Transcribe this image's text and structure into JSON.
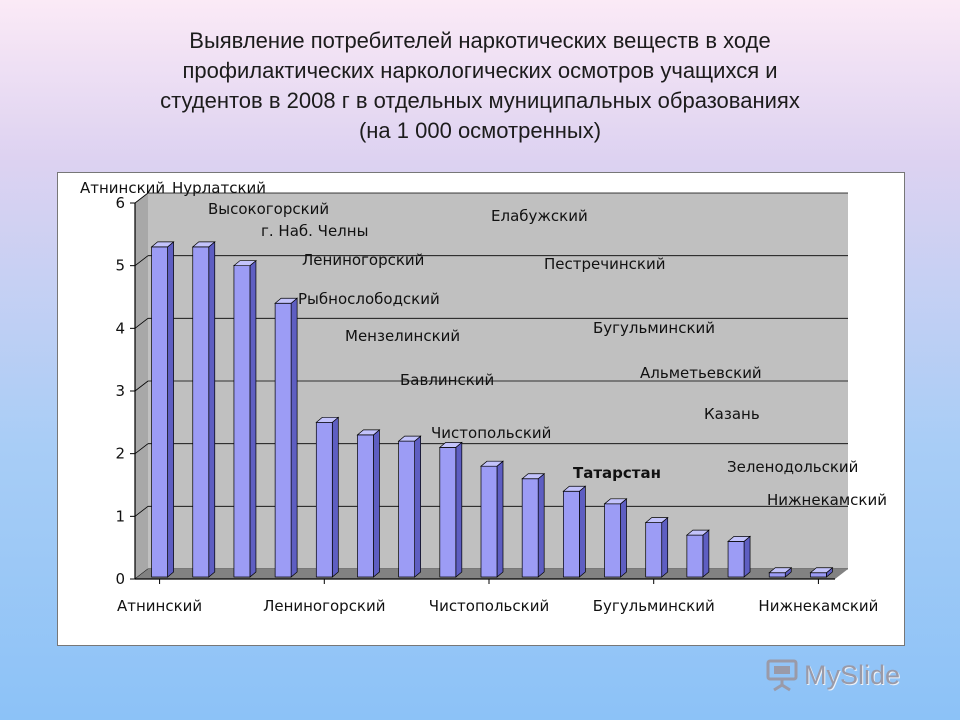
{
  "slide": {
    "title_lines": [
      "Выявление потребителей наркотических веществ  в ходе",
      "профилактических наркологических осмотров учащихся и",
      "студентов в 2008 г в отдельных муниципальных образованиях",
      "(на 1 000 осмотренных)"
    ]
  },
  "watermark": {
    "text": "MySlide"
  },
  "chart_data": {
    "type": "bar",
    "title": "Выявление потребителей наркотических веществ  в ходе профилактических наркологических осмотров учащихся и студентов в 2008 г в отдельных муниципальных образованиях (на 1 000 осмотренных)",
    "categories": [
      "Атнинский",
      "Нурлатский",
      "Высокогорский",
      "г. Наб. Челны",
      "Лениногорский",
      "Рыбнослободский",
      "Мензелинский",
      "Бавлинский",
      "Чистопольский",
      "Елабужский",
      "Татарстан",
      "Пестречинский",
      "Бугульминский",
      "Альметьевский",
      "Казань",
      "Зеленодольский",
      "Нижнекамский"
    ],
    "values": [
      5.3,
      5.3,
      5.0,
      4.4,
      2.5,
      2.3,
      2.2,
      2.1,
      1.8,
      1.6,
      1.4,
      1.2,
      0.9,
      0.7,
      0.6,
      0.1,
      0.1
    ],
    "ylim": [
      0,
      6
    ],
    "y_ticks": [
      "0",
      "1",
      "2",
      "3",
      "4",
      "5",
      "6"
    ],
    "x_tick_labels": [
      "Атнинский",
      "Лениногорский",
      "Чистопольский",
      "Бугульминский",
      "Нижнекамский"
    ],
    "x_tick_indices": [
      0,
      4,
      8,
      12,
      16
    ],
    "bold_categories": [
      "Татарстан"
    ],
    "grid": true,
    "bar_color": "#9c9cf5",
    "bar_side_color": "#5e5ec2",
    "bar_top_color": "#c3c3fb",
    "plot_background": "#c0c0c0",
    "floor_color": "#828282"
  }
}
